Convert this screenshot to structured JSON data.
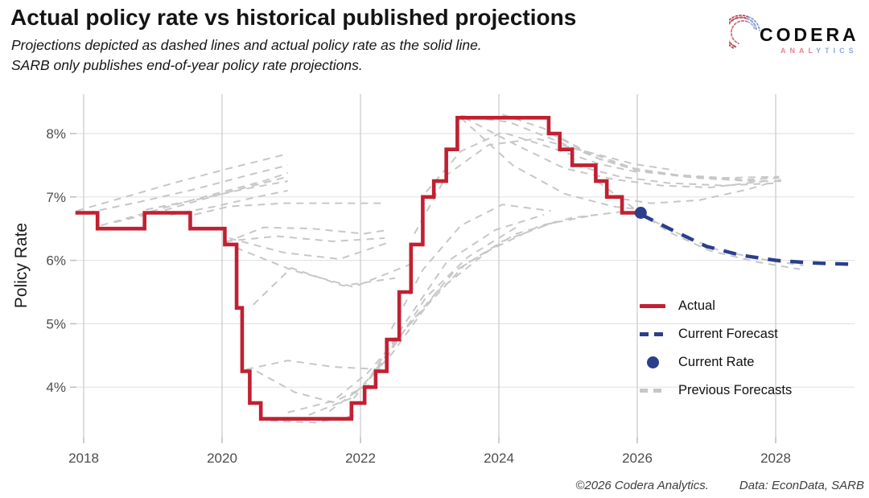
{
  "header": {
    "title": "Actual policy rate vs historical published projections",
    "subtitle_line1": "Projections depicted as dashed lines and actual policy rate as the solid line.",
    "subtitle_line2": "SARB only publishes end-of-year policy rate projections."
  },
  "brand": {
    "name": "CODERA",
    "sub_left": "ANAL",
    "sub_right": "YTICS"
  },
  "legend": {
    "items": [
      {
        "label": "Actual",
        "type": "solid-line"
      },
      {
        "label": "Current Forecast",
        "type": "dashed-line-blue"
      },
      {
        "label": "Current Rate",
        "type": "dot"
      },
      {
        "label": "Previous Forecasts",
        "type": "dashed-line-gray"
      }
    ]
  },
  "footer": {
    "copyright": "©2026 Codera Analytics.",
    "source": "Data: EconData, SARB"
  },
  "chart_data": {
    "type": "line",
    "title": "Actual policy rate vs historical published projections",
    "ylabel": "Policy Rate",
    "xlabel": "",
    "ylim": [
      3.24,
      8.65
    ],
    "xlim": [
      2017.88,
      2029.15
    ],
    "grid": true,
    "legend_position": "right-middle",
    "x_axis": {
      "ticks": [
        {
          "value": 2018,
          "label": "2018"
        },
        {
          "value": 2020,
          "label": "2020"
        },
        {
          "value": 2022,
          "label": "2022"
        },
        {
          "value": 2024,
          "label": "2024"
        },
        {
          "value": 2026,
          "label": "2026"
        },
        {
          "value": 2028,
          "label": "2028"
        }
      ]
    },
    "y_axis": {
      "label": "Policy Rate",
      "ticks": [
        {
          "value": 4,
          "label": "4%"
        },
        {
          "value": 5,
          "label": "5%"
        },
        {
          "value": 6,
          "label": "6%"
        },
        {
          "value": 7,
          "label": "7%"
        },
        {
          "value": 8,
          "label": "8%"
        }
      ]
    },
    "actual": {
      "name": "Actual",
      "start": [
        2017.88,
        6.75
      ],
      "changes": [
        [
          2018.2,
          6.5
        ],
        [
          2018.88,
          6.75
        ],
        [
          2019.54,
          6.5
        ],
        [
          2020.04,
          6.25
        ],
        [
          2020.21,
          5.25
        ],
        [
          2020.29,
          4.25
        ],
        [
          2020.4,
          3.75
        ],
        [
          2020.56,
          3.5
        ],
        [
          2021.87,
          3.75
        ],
        [
          2022.06,
          4.0
        ],
        [
          2022.22,
          4.25
        ],
        [
          2022.38,
          4.75
        ],
        [
          2022.56,
          5.5
        ],
        [
          2022.73,
          6.25
        ],
        [
          2022.9,
          7.0
        ],
        [
          2023.06,
          7.25
        ],
        [
          2023.24,
          7.75
        ],
        [
          2023.4,
          8.25
        ],
        [
          2024.72,
          8.0
        ],
        [
          2024.88,
          7.75
        ],
        [
          2025.06,
          7.5
        ],
        [
          2025.4,
          7.25
        ],
        [
          2025.56,
          7.0
        ],
        [
          2025.78,
          6.75
        ]
      ],
      "end_year": 2026.05
    },
    "current_forecast": {
      "name": "Current Forecast",
      "points": [
        [
          2026.06,
          6.72
        ],
        [
          2026.5,
          6.48
        ],
        [
          2027.0,
          6.22
        ],
        [
          2027.5,
          6.08
        ],
        [
          2028.0,
          6.0
        ],
        [
          2028.5,
          5.96
        ],
        [
          2029.05,
          5.94
        ]
      ]
    },
    "current_rate": {
      "name": "Current Rate",
      "point": [
        2026.05,
        6.75
      ]
    },
    "previous_forecasts": [
      {
        "points": [
          [
            2017.9,
            6.78
          ],
          [
            2018.6,
            7.0
          ],
          [
            2019.3,
            7.22
          ],
          [
            2020.1,
            7.45
          ],
          [
            2020.95,
            7.68
          ]
        ]
      },
      {
        "points": [
          [
            2018.05,
            6.75
          ],
          [
            2018.8,
            6.92
          ],
          [
            2019.6,
            7.12
          ],
          [
            2020.4,
            7.35
          ],
          [
            2020.95,
            7.5
          ]
        ]
      },
      {
        "points": [
          [
            2018.25,
            6.55
          ],
          [
            2019.0,
            6.78
          ],
          [
            2019.8,
            7.02
          ],
          [
            2020.6,
            7.25
          ],
          [
            2020.95,
            7.38
          ]
        ]
      },
      {
        "points": [
          [
            2018.45,
            6.6
          ],
          [
            2019.2,
            6.8
          ],
          [
            2020.0,
            7.05
          ],
          [
            2020.95,
            7.32
          ]
        ]
      },
      {
        "points": [
          [
            2018.9,
            6.8
          ],
          [
            2019.6,
            6.95
          ],
          [
            2020.3,
            7.12
          ],
          [
            2020.95,
            7.25
          ]
        ]
      },
      {
        "points": [
          [
            2019.25,
            6.72
          ],
          [
            2019.9,
            6.85
          ],
          [
            2020.5,
            7.0
          ],
          [
            2020.95,
            7.1
          ]
        ]
      },
      {
        "points": [
          [
            2019.6,
            6.72
          ],
          [
            2020.1,
            6.85
          ],
          [
            2020.9,
            6.9
          ],
          [
            2021.8,
            6.9
          ],
          [
            2022.35,
            6.9
          ]
        ]
      },
      {
        "points": [
          [
            2020.05,
            6.28
          ],
          [
            2020.6,
            6.52
          ],
          [
            2021.3,
            6.5
          ],
          [
            2022.05,
            6.42
          ],
          [
            2022.4,
            6.48
          ]
        ]
      },
      {
        "points": [
          [
            2020.05,
            6.3
          ],
          [
            2020.8,
            6.38
          ],
          [
            2021.6,
            6.3
          ],
          [
            2022.35,
            6.35
          ]
        ]
      },
      {
        "points": [
          [
            2020.1,
            6.35
          ],
          [
            2020.9,
            6.12
          ],
          [
            2021.7,
            6.02
          ],
          [
            2022.4,
            6.28
          ]
        ]
      },
      {
        "points": [
          [
            2020.2,
            6.2
          ],
          [
            2021.0,
            5.85
          ],
          [
            2021.9,
            5.58
          ],
          [
            2022.75,
            5.95
          ]
        ]
      },
      {
        "points": [
          [
            2020.45,
            5.3
          ],
          [
            2021.0,
            5.88
          ],
          [
            2021.75,
            5.6
          ],
          [
            2022.5,
            5.72
          ]
        ]
      },
      {
        "points": [
          [
            2020.35,
            4.28
          ],
          [
            2020.95,
            4.42
          ],
          [
            2021.6,
            4.32
          ],
          [
            2022.3,
            4.28
          ]
        ]
      },
      {
        "points": [
          [
            2020.5,
            4.25
          ],
          [
            2021.05,
            3.92
          ],
          [
            2021.6,
            3.76
          ],
          [
            2022.15,
            4.05
          ]
        ]
      },
      {
        "points": [
          [
            2020.7,
            3.47
          ],
          [
            2021.35,
            3.44
          ],
          [
            2021.95,
            3.56
          ]
        ]
      },
      {
        "points": [
          [
            2020.95,
            3.6
          ],
          [
            2021.6,
            3.78
          ],
          [
            2022.1,
            4.22
          ],
          [
            2022.8,
            5.1
          ],
          [
            2023.5,
            5.92
          ],
          [
            2024.25,
            6.42
          ],
          [
            2025.05,
            6.67
          ],
          [
            2025.8,
            6.77
          ]
        ]
      },
      {
        "points": [
          [
            2021.25,
            3.56
          ],
          [
            2021.85,
            3.82
          ],
          [
            2022.45,
            4.52
          ],
          [
            2023.1,
            5.5
          ],
          [
            2023.85,
            6.15
          ],
          [
            2024.6,
            6.55
          ],
          [
            2025.4,
            6.72
          ]
        ]
      },
      {
        "points": [
          [
            2021.55,
            3.62
          ],
          [
            2022.05,
            4.02
          ],
          [
            2022.65,
            4.92
          ],
          [
            2023.35,
            5.82
          ],
          [
            2024.05,
            6.3
          ],
          [
            2024.85,
            6.62
          ]
        ]
      },
      {
        "points": [
          [
            2021.9,
            3.82
          ],
          [
            2022.35,
            4.42
          ],
          [
            2022.95,
            5.42
          ],
          [
            2023.55,
            6.05
          ],
          [
            2024.25,
            6.52
          ]
        ]
      },
      {
        "points": [
          [
            2022.15,
            4.18
          ],
          [
            2022.65,
            5.02
          ],
          [
            2023.25,
            5.98
          ],
          [
            2023.95,
            6.48
          ],
          [
            2024.65,
            6.72
          ]
        ]
      },
      {
        "points": [
          [
            2022.45,
            4.92
          ],
          [
            2022.9,
            5.85
          ],
          [
            2023.45,
            6.55
          ],
          [
            2024.05,
            6.88
          ],
          [
            2024.75,
            6.78
          ]
        ]
      },
      {
        "points": [
          [
            2022.78,
            6.42
          ],
          [
            2023.25,
            7.35
          ],
          [
            2023.85,
            7.82
          ],
          [
            2024.55,
            7.92
          ],
          [
            2025.25,
            7.72
          ],
          [
            2025.95,
            7.52
          ],
          [
            2026.55,
            7.42
          ]
        ]
      },
      {
        "points": [
          [
            2022.95,
            7.08
          ],
          [
            2023.45,
            7.72
          ],
          [
            2024.05,
            8.02
          ],
          [
            2024.75,
            7.78
          ],
          [
            2025.45,
            7.52
          ],
          [
            2026.05,
            7.38
          ]
        ]
      },
      {
        "points": [
          [
            2023.45,
            8.28
          ],
          [
            2024.15,
            8.18
          ],
          [
            2024.8,
            7.9
          ],
          [
            2025.45,
            7.6
          ],
          [
            2026.05,
            7.42
          ],
          [
            2026.75,
            7.32
          ],
          [
            2027.55,
            7.27
          ],
          [
            2028.05,
            7.3
          ]
        ]
      },
      {
        "points": [
          [
            2023.5,
            8.25
          ],
          [
            2024.25,
            7.82
          ],
          [
            2024.95,
            7.45
          ],
          [
            2025.65,
            7.28
          ],
          [
            2026.35,
            7.18
          ],
          [
            2027.05,
            7.15
          ],
          [
            2027.85,
            7.25
          ]
        ]
      },
      {
        "points": [
          [
            2023.45,
            8.25
          ],
          [
            2024.2,
            7.5
          ],
          [
            2024.95,
            7.05
          ],
          [
            2025.65,
            6.85
          ],
          [
            2026.05,
            6.8
          ]
        ]
      },
      {
        "points": [
          [
            2024.05,
            8.3
          ],
          [
            2024.65,
            8.08
          ],
          [
            2025.25,
            7.72
          ],
          [
            2025.95,
            7.45
          ],
          [
            2026.55,
            7.35
          ],
          [
            2027.25,
            7.3
          ],
          [
            2028.05,
            7.32
          ]
        ]
      },
      {
        "points": [
          [
            2024.75,
            8.0
          ],
          [
            2025.45,
            7.6
          ],
          [
            2026.05,
            7.4
          ],
          [
            2026.85,
            7.3
          ],
          [
            2027.65,
            7.25
          ],
          [
            2028.1,
            7.25
          ]
        ]
      },
      {
        "points": [
          [
            2025.1,
            7.5
          ],
          [
            2025.75,
            7.32
          ],
          [
            2026.45,
            7.22
          ],
          [
            2027.25,
            7.18
          ],
          [
            2028.05,
            7.22
          ]
        ]
      },
      {
        "points": [
          [
            2025.6,
            7.0
          ],
          [
            2026.2,
            6.9
          ],
          [
            2026.9,
            6.95
          ],
          [
            2027.6,
            7.12
          ],
          [
            2028.1,
            7.28
          ]
        ]
      },
      {
        "points": [
          [
            2025.42,
            7.25
          ],
          [
            2025.95,
            6.82
          ],
          [
            2026.45,
            6.45
          ],
          [
            2027.05,
            6.15
          ],
          [
            2027.75,
            5.97
          ],
          [
            2028.35,
            5.86
          ]
        ]
      },
      {
        "points": [
          [
            2026.06,
            6.72
          ],
          [
            2026.6,
            6.42
          ],
          [
            2027.2,
            6.15
          ],
          [
            2027.9,
            6.0
          ],
          [
            2028.4,
            5.92
          ]
        ]
      }
    ],
    "style": {
      "actual_color": "#c12032",
      "forecast_color": "#2b3f8c",
      "current_rate_color": "#2b3f8c",
      "previous_color": "#c7c7c7",
      "grid_h_color": "#e4e4e4",
      "grid_v_color": "#cccccc",
      "tick_color": "#bdbdbd",
      "tick_text_color": "#4d4d4d"
    }
  }
}
